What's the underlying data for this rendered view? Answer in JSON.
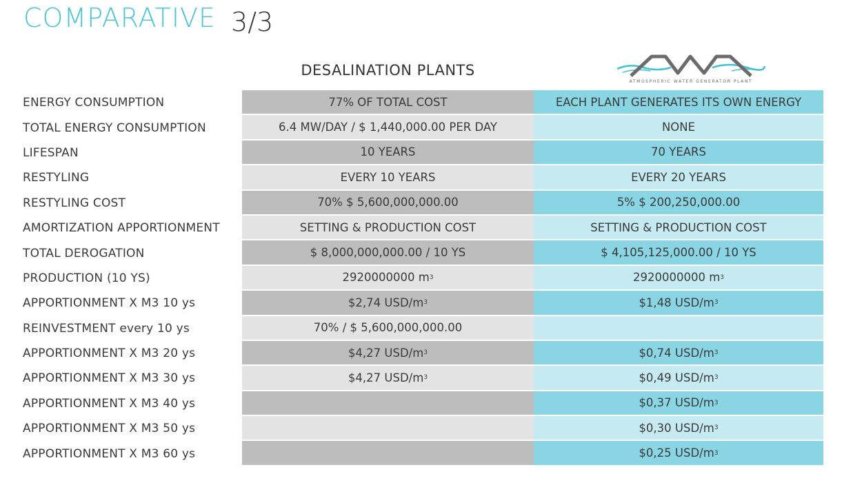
{
  "title": {
    "main": "COMPARATIVE",
    "page": "3/3"
  },
  "columns": {
    "desalination": "DESALINATION PLANTS",
    "awa_logo_text": "AWA",
    "awa_tagline": "ATMOSPHERIC WATER GENERATOR PLANT"
  },
  "colors": {
    "accent": "#4fc3d3",
    "desal_dark": "#bdbdbd",
    "desal_light": "#e3e3e3",
    "awa_dark": "#8ad5e3",
    "awa_light": "#c6eaf1"
  },
  "rows": [
    {
      "label": "ENERGY CONSUMPTION",
      "desal": "77% OF TOTAL COST",
      "awa": "EACH PLANT GENERATES ITS OWN ENERGY"
    },
    {
      "label": "TOTAL ENERGY CONSUMPTION",
      "desal": "6.4 MW/DAY / $ 1,440,000.00 PER DAY",
      "awa": "NONE"
    },
    {
      "label": "LIFESPAN",
      "desal": "10 YEARS",
      "awa": "70 YEARS"
    },
    {
      "label": "RESTYLING",
      "desal": "EVERY 10 YEARS",
      "awa": "EVERY 20 YEARS"
    },
    {
      "label": "RESTYLING COST",
      "desal": "70% $ 5,600,000,000.00",
      "awa": "5% $ 200,250,000.00"
    },
    {
      "label": "AMORTIZATION APPORTIONMENT",
      "desal": "SETTING & PRODUCTION COST",
      "awa": "SETTING & PRODUCTION COST"
    },
    {
      "label": "TOTAL DEROGATION",
      "desal": "$ 8,000,000,000.00 / 10 YS",
      "awa": "$ 4,105,125,000.00 / 10 YS"
    },
    {
      "label": "PRODUCTION (10 YS)",
      "desal": "2920000000 m",
      "desal_sup": "3",
      "awa": "2920000000 m",
      "awa_sup": "3"
    },
    {
      "label": "APPORTIONMENT X M3 10 ys",
      "desal": "$2,74 USD/m",
      "desal_sup": "3",
      "awa": "$1,48 USD/m",
      "awa_sup": "3"
    },
    {
      "label": "REINVESTMENT every 10 ys",
      "desal": "70% / $ 5,600,000,000.00",
      "awa": ""
    },
    {
      "label": "APPORTIONMENT X M3 20 ys",
      "desal": "$4,27 USD/m",
      "desal_sup": "3",
      "awa": "$0,74 USD/m",
      "awa_sup": "3"
    },
    {
      "label": "APPORTIONMENT X M3 30 ys",
      "desal": "$4,27 USD/m",
      "desal_sup": "3",
      "awa": "$0,49 USD/m",
      "awa_sup": "3"
    },
    {
      "label": "APPORTIONMENT X M3 40 ys",
      "desal": "",
      "awa": "$0,37 USD/m",
      "awa_sup": "3"
    },
    {
      "label": "APPORTIONMENT X M3 50 ys",
      "desal": "",
      "awa": "$0,30 USD/m",
      "awa_sup": "3"
    },
    {
      "label": "APPORTIONMENT X M3 60 ys",
      "desal": "",
      "awa": "$0,25 USD/m",
      "awa_sup": "3"
    }
  ]
}
